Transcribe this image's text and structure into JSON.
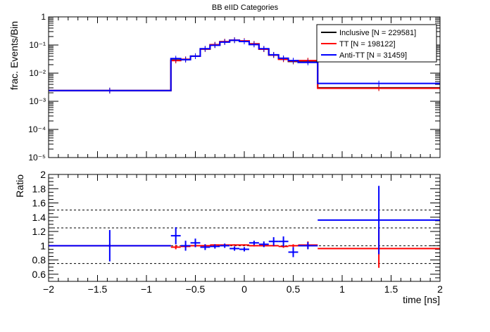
{
  "chart_data": [
    {
      "type": "line",
      "title": "BB eIID Categories",
      "ylabel": "frac. Events/Bin",
      "yscale": "log",
      "ylim": [
        1e-05,
        1
      ],
      "xlim": [
        -2,
        2
      ],
      "grid": false,
      "legend_position": "top-right",
      "y_tick_labels": [
        "10⁻⁵",
        "10⁻⁴",
        "10⁻³",
        "10⁻²",
        "10⁻¹",
        "1"
      ],
      "bin_edges": [
        -2.0,
        -0.75,
        -0.65,
        -0.55,
        -0.45,
        -0.35,
        -0.25,
        -0.15,
        -0.05,
        0.05,
        0.15,
        0.25,
        0.35,
        0.45,
        0.55,
        0.75,
        2.0
      ],
      "series": [
        {
          "name": "Inclusive [N = 229581]",
          "color": "#000000",
          "values": [
            0.0024,
            0.029,
            0.031,
            0.04,
            0.072,
            0.1,
            0.13,
            0.148,
            0.138,
            0.11,
            0.071,
            0.044,
            0.032,
            0.026,
            0.027,
            0.003
          ]
        },
        {
          "name": "TT [N = 198122]",
          "color": "#ff0000",
          "values": [
            0.0024,
            0.028,
            0.031,
            0.04,
            0.072,
            0.103,
            0.132,
            0.15,
            0.14,
            0.11,
            0.071,
            0.044,
            0.031,
            0.027,
            0.028,
            0.0029
          ]
        },
        {
          "name": "Anti-TT [N = 31459]",
          "color": "#0000ff",
          "values": [
            0.0024,
            0.033,
            0.03,
            0.04,
            0.074,
            0.098,
            0.127,
            0.147,
            0.133,
            0.104,
            0.074,
            0.045,
            0.034,
            0.028,
            0.024,
            0.0043
          ]
        }
      ]
    },
    {
      "type": "line",
      "ylabel": "Ratio",
      "xlabel": "time [ns]",
      "ylim": [
        0.5,
        2.0
      ],
      "xlim": [
        -2,
        2
      ],
      "y_ticks": [
        0.6,
        0.8,
        1,
        1.2,
        1.4,
        1.6,
        1.8,
        2
      ],
      "x_ticks": [
        -2,
        -1.5,
        -1,
        -0.5,
        0,
        0.5,
        1,
        1.5,
        2
      ],
      "reference_lines": [
        0.75,
        1.0,
        1.25,
        1.5
      ],
      "bin_edges": [
        -2.0,
        -0.75,
        -0.65,
        -0.55,
        -0.45,
        -0.35,
        -0.25,
        -0.15,
        -0.05,
        0.05,
        0.15,
        0.25,
        0.35,
        0.45,
        0.55,
        0.75,
        2.0
      ],
      "series": [
        {
          "name": "TT",
          "color": "#ff0000",
          "values": [
            1.0,
            0.98,
            0.99,
            1.0,
            1.0,
            1.01,
            1.01,
            1.01,
            1.01,
            1.0,
            1.0,
            1.0,
            0.99,
            1.0,
            1.01,
            0.96
          ],
          "errors": [
            0.02,
            0.03,
            0.02,
            0.02,
            0.02,
            0.01,
            0.01,
            0.01,
            0.01,
            0.01,
            0.01,
            0.01,
            0.02,
            0.02,
            0.05,
            0.27
          ]
        },
        {
          "name": "Anti-TT",
          "color": "#0000ff",
          "values": [
            1.0,
            1.14,
            1.0,
            1.04,
            0.98,
            0.99,
            1.0,
            0.96,
            0.95,
            1.04,
            1.02,
            1.06,
            1.06,
            0.91,
            1.0,
            1.36
          ],
          "errors": [
            0.22,
            0.12,
            0.07,
            0.06,
            0.04,
            0.03,
            0.03,
            0.03,
            0.03,
            0.03,
            0.04,
            0.06,
            0.07,
            0.07,
            0.05,
            0.48
          ]
        }
      ]
    }
  ]
}
